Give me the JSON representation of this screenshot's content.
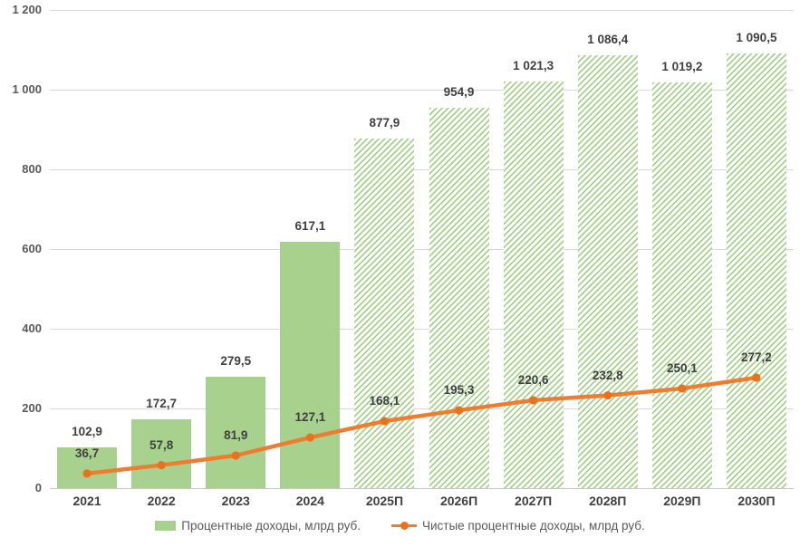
{
  "chart_data": {
    "type": "combo",
    "subtypes": [
      "bar",
      "line"
    ],
    "categories": [
      "2021",
      "2022",
      "2023",
      "2024",
      "2025П",
      "2026П",
      "2027П",
      "2028П",
      "2029П",
      "2030П"
    ],
    "series": [
      {
        "name": "Процентные доходы, млрд руб.",
        "type": "bar",
        "color": "#a9d18e",
        "values": [
          102.9,
          172.7,
          279.5,
          617.1,
          877.9,
          954.9,
          1021.3,
          1086.4,
          1019.2,
          1090.5
        ],
        "labels": [
          "102,9",
          "172,7",
          "279,5",
          "617,1",
          "877,9",
          "954,9",
          "1 021,3",
          "1 086,4",
          "1 019,2",
          "1 090,5"
        ],
        "hatched": [
          false,
          false,
          false,
          false,
          true,
          true,
          true,
          true,
          true,
          true
        ]
      },
      {
        "name": "Чистые процентные доходы, млрд руб.",
        "type": "line",
        "color": "#ed7d31",
        "marker_color": "#e8731e",
        "values": [
          36.7,
          57.8,
          81.9,
          127.1,
          168.1,
          195.3,
          220.6,
          232.8,
          250.1,
          277.2
        ],
        "labels": [
          "36,7",
          "57,8",
          "81,9",
          "127,1",
          "168,1",
          "195,3",
          "220,6",
          "232,8",
          "250,1",
          "277,2"
        ]
      }
    ],
    "ylim": [
      0,
      1200
    ],
    "yticks": {
      "values": [
        0,
        200,
        400,
        600,
        800,
        1000,
        1200
      ],
      "labels": [
        "0",
        "200",
        "400",
        "600",
        "800",
        "1 000",
        "1 200"
      ]
    },
    "grid": true,
    "legend_position": "bottom",
    "colors": {
      "bar_fill": "#a9d18e",
      "line_stroke": "#ed7d31",
      "data_label": "#404040",
      "axis_label": "#595959",
      "gridline": "#d9d9d9"
    }
  }
}
